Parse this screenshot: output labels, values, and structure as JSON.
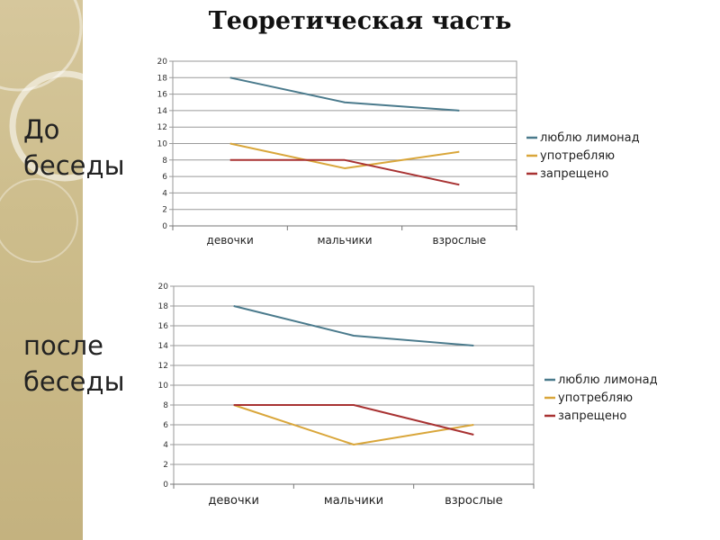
{
  "slide": {
    "title": "Теоретическая часть",
    "label_before": [
      "До",
      "беседы"
    ],
    "label_after": [
      "после",
      "беседы"
    ]
  },
  "chart_data": [
    {
      "type": "line",
      "title": "",
      "xlabel": "",
      "ylabel": "",
      "categories": [
        "девочки",
        "мальчики",
        "взрослые"
      ],
      "ylim": [
        0,
        20
      ],
      "yticks": [
        0,
        2,
        4,
        6,
        8,
        10,
        12,
        14,
        16,
        18,
        20
      ],
      "grid": true,
      "legend": "right",
      "series": [
        {
          "name": "люблю лимонад",
          "values": [
            18,
            15,
            14
          ],
          "color": "#4a7a8c"
        },
        {
          "name": "употребляю",
          "values": [
            10,
            7,
            9
          ],
          "color": "#d9a63a"
        },
        {
          "name": "запрещено",
          "values": [
            8,
            8,
            5
          ],
          "color": "#a83232"
        }
      ]
    },
    {
      "type": "line",
      "title": "",
      "xlabel": "",
      "ylabel": "",
      "categories": [
        "девочки",
        "мальчики",
        "взрослые"
      ],
      "ylim": [
        0,
        20
      ],
      "yticks": [
        0,
        2,
        4,
        6,
        8,
        10,
        12,
        14,
        16,
        18,
        20
      ],
      "grid": true,
      "legend": "right",
      "series": [
        {
          "name": "люблю лимонад",
          "values": [
            18,
            15,
            14
          ],
          "color": "#4a7a8c"
        },
        {
          "name": "употребляю",
          "values": [
            8,
            4,
            6
          ],
          "color": "#d9a63a"
        },
        {
          "name": "запрещено",
          "values": [
            8,
            8,
            5
          ],
          "color": "#a83232"
        }
      ]
    }
  ]
}
